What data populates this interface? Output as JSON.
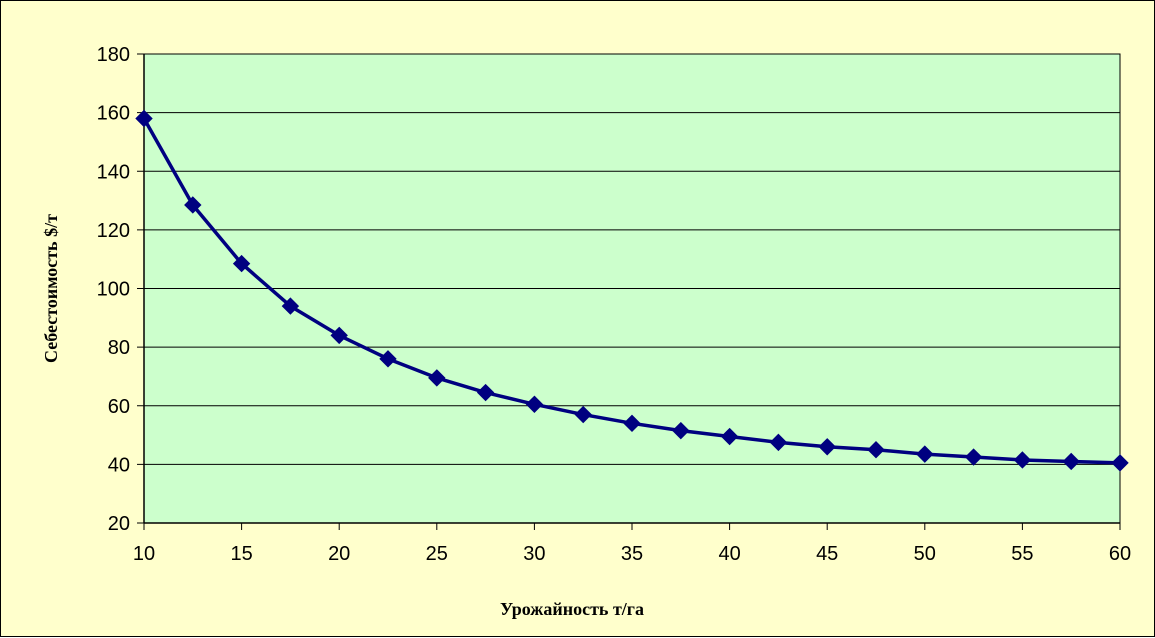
{
  "colors": {
    "background": "#ffffcc",
    "plot_area": "#ccffcc",
    "gridline": "#000000",
    "series_line": "#000080",
    "marker": "#000080"
  },
  "chart_data": {
    "type": "line",
    "xlabel": "Урожайность т/га",
    "ylabel": "Себестоимость $/т",
    "xlim": [
      10,
      60
    ],
    "ylim": [
      20,
      180
    ],
    "xticks": [
      10,
      15,
      20,
      25,
      30,
      35,
      40,
      45,
      50,
      55,
      60
    ],
    "yticks": [
      20,
      40,
      60,
      80,
      100,
      120,
      140,
      160,
      180
    ],
    "grid": "horizontal",
    "marker": "diamond",
    "series": [
      {
        "x": [
          10,
          12.5,
          15,
          17.5,
          20,
          22.5,
          25,
          27.5,
          30,
          32.5,
          35,
          37.5,
          40,
          42.5,
          45,
          47.5,
          50,
          52.5,
          55,
          57.5,
          60
        ],
        "y": [
          158,
          128.5,
          108.5,
          94,
          84,
          76,
          69.5,
          64.5,
          60.5,
          57,
          54,
          51.5,
          49.5,
          47.5,
          46,
          45,
          43.5,
          42.5,
          41.5,
          41,
          40.5
        ]
      }
    ]
  }
}
